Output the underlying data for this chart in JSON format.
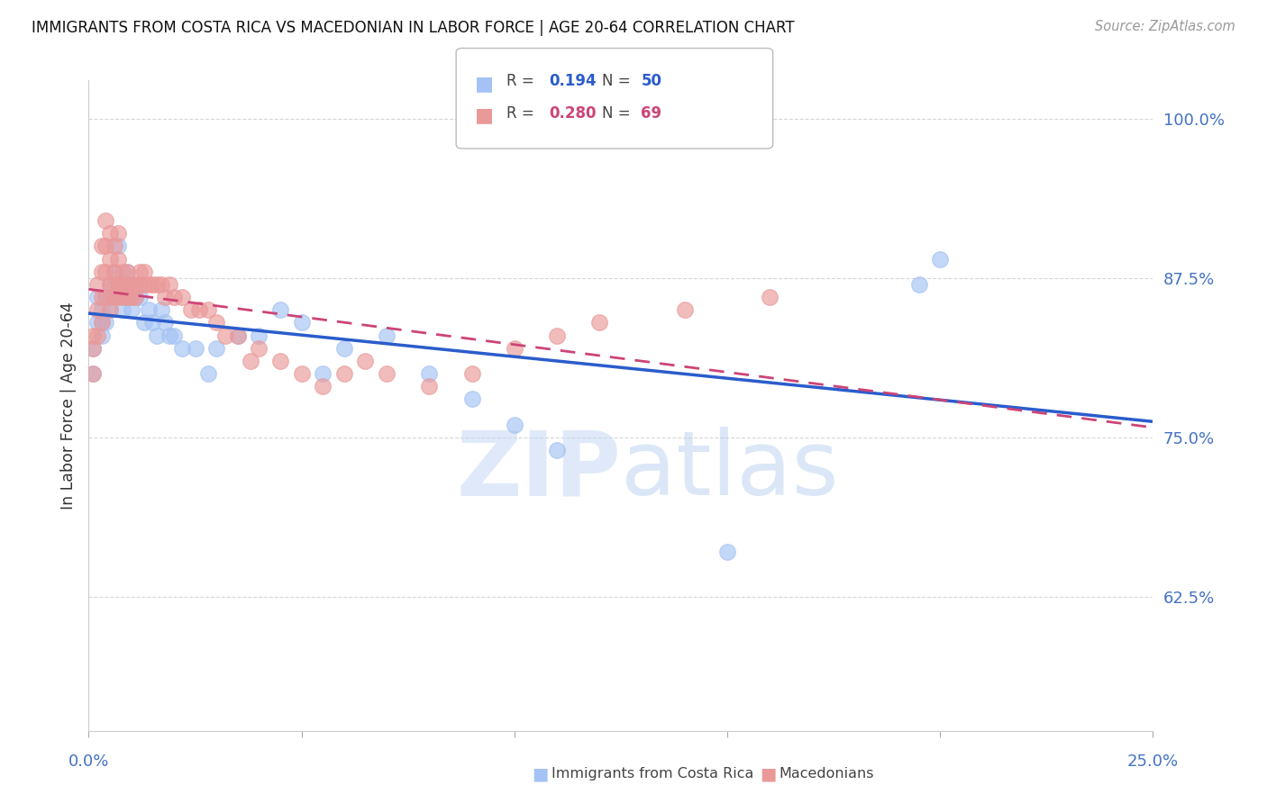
{
  "title": "IMMIGRANTS FROM COSTA RICA VS MACEDONIAN IN LABOR FORCE | AGE 20-64 CORRELATION CHART",
  "source": "Source: ZipAtlas.com",
  "ylabel": "In Labor Force | Age 20-64",
  "xlim": [
    0.0,
    0.25
  ],
  "ylim": [
    0.52,
    1.03
  ],
  "watermark_zip": "ZIP",
  "watermark_atlas": "atlas",
  "series1_label": "Immigrants from Costa Rica",
  "series1_R": "0.194",
  "series1_N": "50",
  "series1_color": "#a4c2f4",
  "series1_line_color": "#2a5ccc",
  "series2_label": "Macedonians",
  "series2_R": "0.280",
  "series2_N": "69",
  "series2_color": "#ea9999",
  "series2_line_color": "#cc4477",
  "tick_color": "#4472c4",
  "grid_color": "#cccccc",
  "background_color": "#ffffff",
  "ytick_vals": [
    0.625,
    0.75,
    0.875,
    1.0
  ],
  "ytick_labels": [
    "62.5%",
    "75.0%",
    "87.5%",
    "100.0%"
  ],
  "series1_x": [
    0.001,
    0.001,
    0.002,
    0.002,
    0.003,
    0.003,
    0.003,
    0.004,
    0.004,
    0.005,
    0.005,
    0.005,
    0.006,
    0.006,
    0.007,
    0.007,
    0.008,
    0.008,
    0.009,
    0.009,
    0.01,
    0.01,
    0.011,
    0.012,
    0.013,
    0.014,
    0.015,
    0.016,
    0.017,
    0.018,
    0.019,
    0.02,
    0.022,
    0.025,
    0.028,
    0.03,
    0.035,
    0.04,
    0.045,
    0.05,
    0.055,
    0.06,
    0.07,
    0.08,
    0.09,
    0.1,
    0.11,
    0.15,
    0.195,
    0.2
  ],
  "series1_y": [
    0.82,
    0.8,
    0.84,
    0.86,
    0.85,
    0.84,
    0.83,
    0.86,
    0.84,
    0.86,
    0.87,
    0.85,
    0.88,
    0.86,
    0.9,
    0.87,
    0.87,
    0.85,
    0.88,
    0.86,
    0.87,
    0.85,
    0.86,
    0.86,
    0.84,
    0.85,
    0.84,
    0.83,
    0.85,
    0.84,
    0.83,
    0.83,
    0.82,
    0.82,
    0.8,
    0.82,
    0.83,
    0.83,
    0.85,
    0.84,
    0.8,
    0.82,
    0.83,
    0.8,
    0.78,
    0.76,
    0.74,
    0.66,
    0.87,
    0.89
  ],
  "series2_x": [
    0.001,
    0.001,
    0.001,
    0.002,
    0.002,
    0.002,
    0.003,
    0.003,
    0.003,
    0.003,
    0.004,
    0.004,
    0.004,
    0.004,
    0.005,
    0.005,
    0.005,
    0.005,
    0.006,
    0.006,
    0.006,
    0.006,
    0.007,
    0.007,
    0.007,
    0.007,
    0.008,
    0.008,
    0.008,
    0.009,
    0.009,
    0.009,
    0.01,
    0.01,
    0.011,
    0.011,
    0.012,
    0.012,
    0.013,
    0.013,
    0.014,
    0.015,
    0.016,
    0.017,
    0.018,
    0.019,
    0.02,
    0.022,
    0.024,
    0.026,
    0.028,
    0.03,
    0.032,
    0.035,
    0.038,
    0.04,
    0.045,
    0.05,
    0.055,
    0.06,
    0.065,
    0.07,
    0.08,
    0.09,
    0.1,
    0.11,
    0.12,
    0.14,
    0.16
  ],
  "series2_y": [
    0.83,
    0.82,
    0.8,
    0.87,
    0.85,
    0.83,
    0.9,
    0.88,
    0.86,
    0.84,
    0.92,
    0.9,
    0.88,
    0.86,
    0.91,
    0.89,
    0.87,
    0.85,
    0.9,
    0.88,
    0.87,
    0.86,
    0.91,
    0.89,
    0.87,
    0.86,
    0.88,
    0.87,
    0.86,
    0.88,
    0.87,
    0.86,
    0.87,
    0.86,
    0.87,
    0.86,
    0.88,
    0.87,
    0.88,
    0.87,
    0.87,
    0.87,
    0.87,
    0.87,
    0.86,
    0.87,
    0.86,
    0.86,
    0.85,
    0.85,
    0.85,
    0.84,
    0.83,
    0.83,
    0.81,
    0.82,
    0.81,
    0.8,
    0.79,
    0.8,
    0.81,
    0.8,
    0.79,
    0.8,
    0.82,
    0.83,
    0.84,
    0.85,
    0.86
  ]
}
